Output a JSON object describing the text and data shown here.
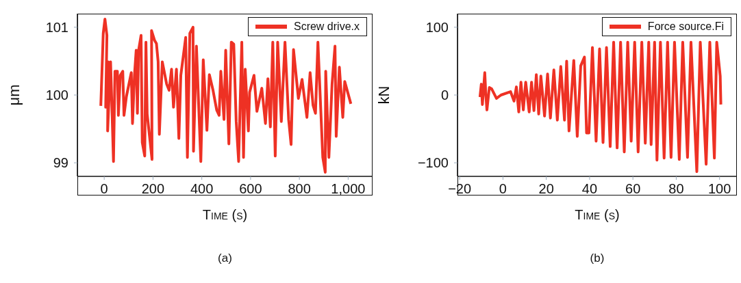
{
  "chart_data": [
    {
      "type": "line",
      "xlabel": "Time (s)",
      "ylabel": "μm",
      "annotations": [
        "(a)"
      ],
      "legend": "top right",
      "grid": false,
      "marker": "none",
      "line_style": "solid",
      "xlim": [
        -110,
        1100
      ],
      "xticks": [
        0,
        200,
        400,
        600,
        800,
        {
          "value": 1000,
          "label": "1,000"
        }
      ],
      "ylim": [
        98.8,
        101.2
      ],
      "yticks": [
        99,
        100,
        101
      ],
      "x": [
        -14,
        -4,
        3,
        11,
        6,
        16,
        14,
        26,
        38,
        44,
        54,
        58,
        66,
        76,
        81,
        91,
        111,
        116,
        124,
        131,
        136,
        141,
        151,
        156,
        166,
        171,
        176,
        196,
        194,
        206,
        214,
        221,
        226,
        238,
        256,
        266,
        276,
        284,
        296,
        306,
        314,
        334,
        341,
        351,
        364,
        366,
        378,
        396,
        406,
        421,
        431,
        446,
        461,
        471,
        478,
        491,
        498,
        511,
        521,
        531,
        541,
        551,
        564,
        571,
        578,
        591,
        596,
        614,
        626,
        646,
        661,
        671,
        681,
        691,
        701,
        711,
        726,
        741,
        756,
        766,
        776,
        796,
        811,
        831,
        844,
        856,
        866,
        876,
        896,
        906,
        908,
        921,
        934,
        946,
        951,
        964,
        978,
        986,
        1011
      ],
      "series": [
        {
          "name": "Screw drive.x",
          "color": "#ee3124",
          "values": [
            99.84,
            100.91,
            101.12,
            100.88,
            99.82,
            100.49,
            99.47,
            100.49,
            99.02,
            100.35,
            100.35,
            99.7,
            100.29,
            100.35,
            99.7,
            99.98,
            100.33,
            99.58,
            100.29,
            100.66,
            99.73,
            100.66,
            100.88,
            99.3,
            99.1,
            100.78,
            99.72,
            99.05,
            100.95,
            100.81,
            100.76,
            100.49,
            99.42,
            100.49,
            100.16,
            100.07,
            100.38,
            99.82,
            100.38,
            99.36,
            100.29,
            100.85,
            99.08,
            100.91,
            101.0,
            99.17,
            100.72,
            99.02,
            100.52,
            99.48,
            100.3,
            100.07,
            99.78,
            99.7,
            100.35,
            99.64,
            100.66,
            99.28,
            100.78,
            100.75,
            99.61,
            99.02,
            100.78,
            99.08,
            100.38,
            99.47,
            100.04,
            100.29,
            99.76,
            100.1,
            99.58,
            100.24,
            99.53,
            100.78,
            99.1,
            100.78,
            99.61,
            100.78,
            99.64,
            99.27,
            100.67,
            99.95,
            100.23,
            99.67,
            100.33,
            99.85,
            99.73,
            100.78,
            99.08,
            98.86,
            100.35,
            99.08,
            100.16,
            100.72,
            99.39,
            100.41,
            99.67,
            100.2,
            99.87
          ]
        }
      ]
    },
    {
      "type": "line",
      "xlabel": "Time (s)",
      "ylabel": "kN",
      "annotations": [
        "(b)"
      ],
      "legend": "top right",
      "grid": false,
      "marker": "none",
      "line_style": "solid",
      "xlim": [
        -21,
        108
      ],
      "xticks": [
        {
          "value": -20,
          "label": "−20"
        },
        0,
        20,
        40,
        60,
        80,
        100
      ],
      "ylim": [
        -120,
        120
      ],
      "yticks": [
        {
          "value": -100,
          "label": "−100"
        },
        0,
        100
      ],
      "x": [
        -10.6,
        -10,
        -9.5,
        -8.4,
        -7.9,
        -7.4,
        -6.3,
        -5.2,
        -3,
        -0.9,
        3.5,
        5.1,
        6.2,
        7.3,
        8.3,
        9.4,
        10.5,
        12.1,
        13.2,
        14.3,
        15.4,
        16.5,
        17.5,
        19.2,
        20.6,
        21.9,
        23.5,
        25.1,
        26.7,
        28.4,
        29.4,
        30.5,
        32.7,
        34.3,
        35.9,
        37.6,
        38.6,
        39.7,
        41.3,
        43,
        44.6,
        46.2,
        47.8,
        49.5,
        51.1,
        52.7,
        54.3,
        56,
        57.6,
        59.2,
        60.8,
        62.4,
        64.1,
        65.7,
        67.3,
        68.4,
        70,
        71.1,
        72.7,
        74.4,
        76,
        77.6,
        79.2,
        81.4,
        83,
        85.2,
        86.8,
        89.5,
        91.1,
        93.8,
        95.5,
        97.6,
        98.7,
        100.3,
        100.6
      ],
      "series": [
        {
          "name": "Force source.Fi",
          "color": "#ee3124",
          "values": [
            -3,
            16,
            -14,
            33,
            0,
            -22,
            11,
            9,
            -5,
            0,
            5,
            -9,
            12,
            -25,
            19,
            -22,
            19,
            -25,
            19,
            -23,
            30,
            -28,
            28,
            -31,
            31,
            -34,
            37,
            -37,
            42,
            -37,
            50,
            -53,
            51,
            -61,
            43,
            56,
            -56,
            -56,
            70,
            -68,
            68,
            -70,
            70,
            -76,
            78,
            -78,
            78,
            -84,
            78,
            -68,
            78,
            -84,
            78,
            -71,
            78,
            -73,
            78,
            -96,
            78,
            -93,
            78,
            -92,
            78,
            -95,
            78,
            -92,
            78,
            -113,
            78,
            -102,
            78,
            -93,
            78,
            28,
            -14
          ]
        }
      ]
    }
  ]
}
